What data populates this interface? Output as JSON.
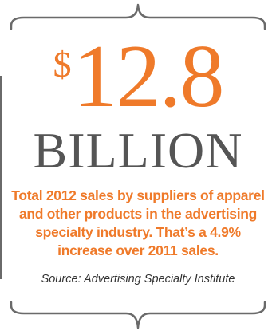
{
  "figure": {
    "currency": "$",
    "amount": "12.8",
    "unit": "BILLION",
    "description": "Total 2012 sales by suppliers of apparel and other products in the advertising specialty industry. That’s a 4.9% increase over 2011 sales.",
    "source": "Source: Advertising Specialty Institute"
  },
  "colors": {
    "accent": "#ef7a2a",
    "unit_text": "#555555",
    "source_text": "#333333",
    "brace": "#6a6a6a"
  }
}
